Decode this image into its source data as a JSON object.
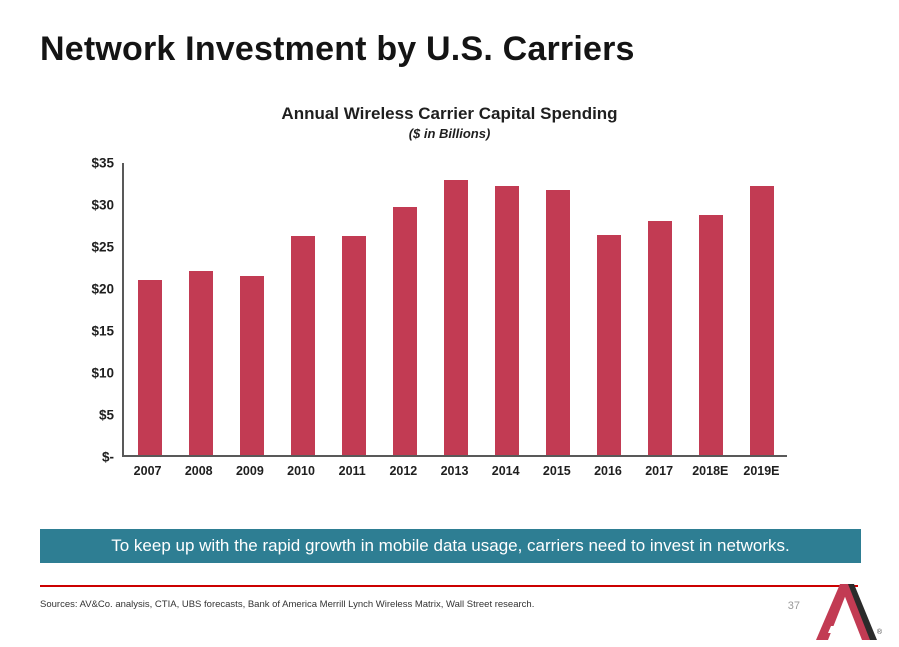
{
  "slide": {
    "title": "Network Investment by U.S. Carriers",
    "banner": "To keep up with the rapid growth in mobile data usage, carriers need to invest in networks.",
    "sources": "Sources: AV&Co. analysis, CTIA, UBS forecasts, Bank of America Merrill Lynch Wireless Matrix, Wall Street research.",
    "page_number": "37",
    "registered_mark": "®"
  },
  "chart_data": {
    "type": "bar",
    "title": "Annual Wireless Carrier Capital Spending",
    "subtitle": "($ in Billions)",
    "categories": [
      "2007",
      "2008",
      "2009",
      "2010",
      "2011",
      "2012",
      "2013",
      "2014",
      "2015",
      "2016",
      "2017",
      "2018E",
      "2019E"
    ],
    "values": [
      21,
      22,
      21.5,
      26.2,
      26.2,
      29.7,
      33,
      32.2,
      31.8,
      26.4,
      28,
      28.8,
      32.3
    ],
    "xlabel": "",
    "ylabel": "",
    "ylim": [
      0,
      35
    ],
    "ytick_step": 5,
    "ytick_labels": [
      "$-",
      "$5",
      "$10",
      "$15",
      "$20",
      "$25",
      "$30",
      "$35"
    ],
    "bar_color": "#C23B53",
    "grid": false,
    "legend": false
  },
  "colors": {
    "bar": "#C23B53",
    "banner_background": "#2E7E93",
    "accent_line": "#CC0000",
    "logo_red": "#C23B53",
    "logo_dark": "#2b2b2b"
  }
}
